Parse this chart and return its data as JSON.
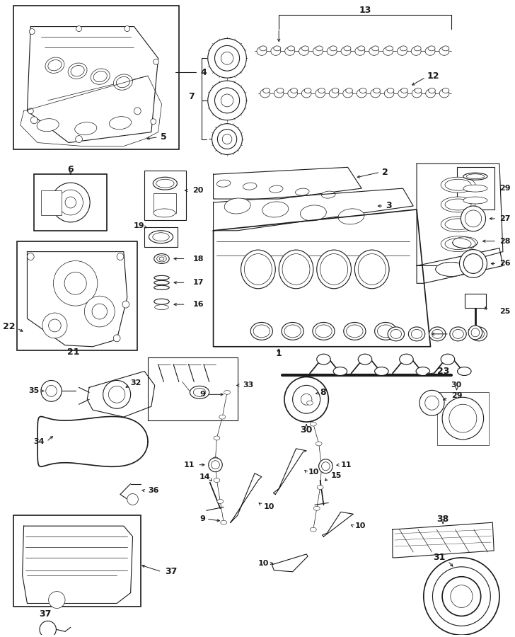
{
  "bg_color": "#ffffff",
  "lc": "#1a1a1a",
  "fig_w": 7.28,
  "fig_h": 9.0,
  "dpi": 100
}
